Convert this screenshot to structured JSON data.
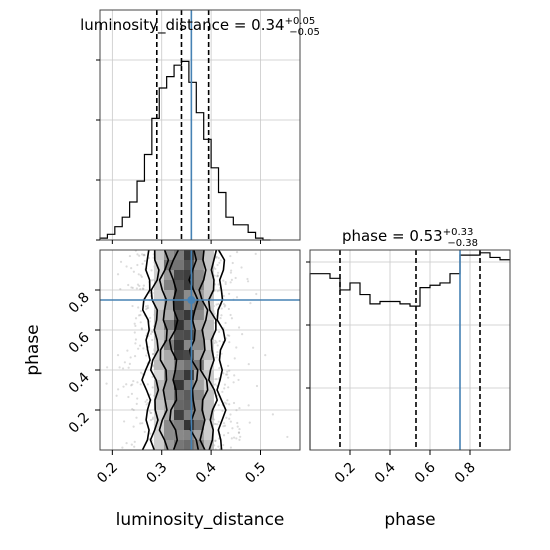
{
  "chart_data": {
    "type": "corner",
    "parameters": [
      "luminosity_distance",
      "phase"
    ],
    "truths": {
      "luminosity_distance": 0.36,
      "phase": 0.75
    },
    "grid": true,
    "diag": [
      {
        "param": "luminosity_distance",
        "title": {
          "text": "luminosity_distance = 0.34",
          "upper": "+0.05",
          "lower": "−0.05"
        },
        "quantiles": [
          0.29,
          0.34,
          0.395
        ],
        "xlim": [
          0.175,
          0.58
        ],
        "bin_edges": [
          0.175,
          0.19,
          0.205,
          0.22,
          0.235,
          0.25,
          0.265,
          0.28,
          0.295,
          0.31,
          0.325,
          0.34,
          0.355,
          0.37,
          0.385,
          0.4,
          0.415,
          0.43,
          0.445,
          0.46,
          0.475,
          0.49,
          0.505,
          0.52
        ],
        "counts": [
          0.01,
          0.03,
          0.07,
          0.12,
          0.2,
          0.31,
          0.45,
          0.64,
          0.8,
          0.86,
          0.92,
          0.94,
          0.83,
          0.67,
          0.53,
          0.38,
          0.25,
          0.12,
          0.08,
          0.08,
          0.04,
          0.01,
          0.0
        ]
      },
      {
        "param": "phase",
        "title": {
          "text": "phase = 0.53",
          "upper": "+0.33",
          "lower": "−0.38"
        },
        "quantiles": [
          0.15,
          0.53,
          0.85
        ],
        "xlim": [
          0.0,
          1.0
        ],
        "bin_edges": [
          0.0,
          0.05,
          0.1,
          0.15,
          0.2,
          0.25,
          0.3,
          0.35,
          0.4,
          0.45,
          0.5,
          0.55,
          0.6,
          0.65,
          0.7,
          0.75,
          0.8,
          0.85,
          0.9,
          0.95,
          1.0
        ],
        "counts": [
          0.76,
          0.76,
          0.74,
          0.69,
          0.72,
          0.67,
          0.63,
          0.64,
          0.64,
          0.63,
          0.62,
          0.7,
          0.71,
          0.72,
          0.76,
          0.84,
          0.84,
          0.85,
          0.83,
          0.82
        ]
      }
    ],
    "joint": {
      "x": "luminosity_distance",
      "y": "phase",
      "xlim": [
        0.175,
        0.58
      ],
      "ylim": [
        0.0,
        1.0
      ],
      "center": 0.345,
      "contours_x_halfwidth": [
        0.02,
        0.04,
        0.058,
        0.075
      ]
    },
    "xticks": {
      "luminosity_distance": [
        "0.2",
        "0.3",
        "0.4",
        "0.5"
      ],
      "phase": [
        "0.2",
        "0.4",
        "0.6",
        "0.8"
      ]
    },
    "yticks": {
      "phase": [
        "0.2",
        "0.4",
        "0.6",
        "0.8"
      ]
    },
    "xlabels": [
      "luminosity_distance",
      "phase"
    ],
    "ylabel": "phase",
    "colors": {
      "truth": "#4682b4",
      "hist": "#000000",
      "grid": "#c8c8c8"
    }
  }
}
